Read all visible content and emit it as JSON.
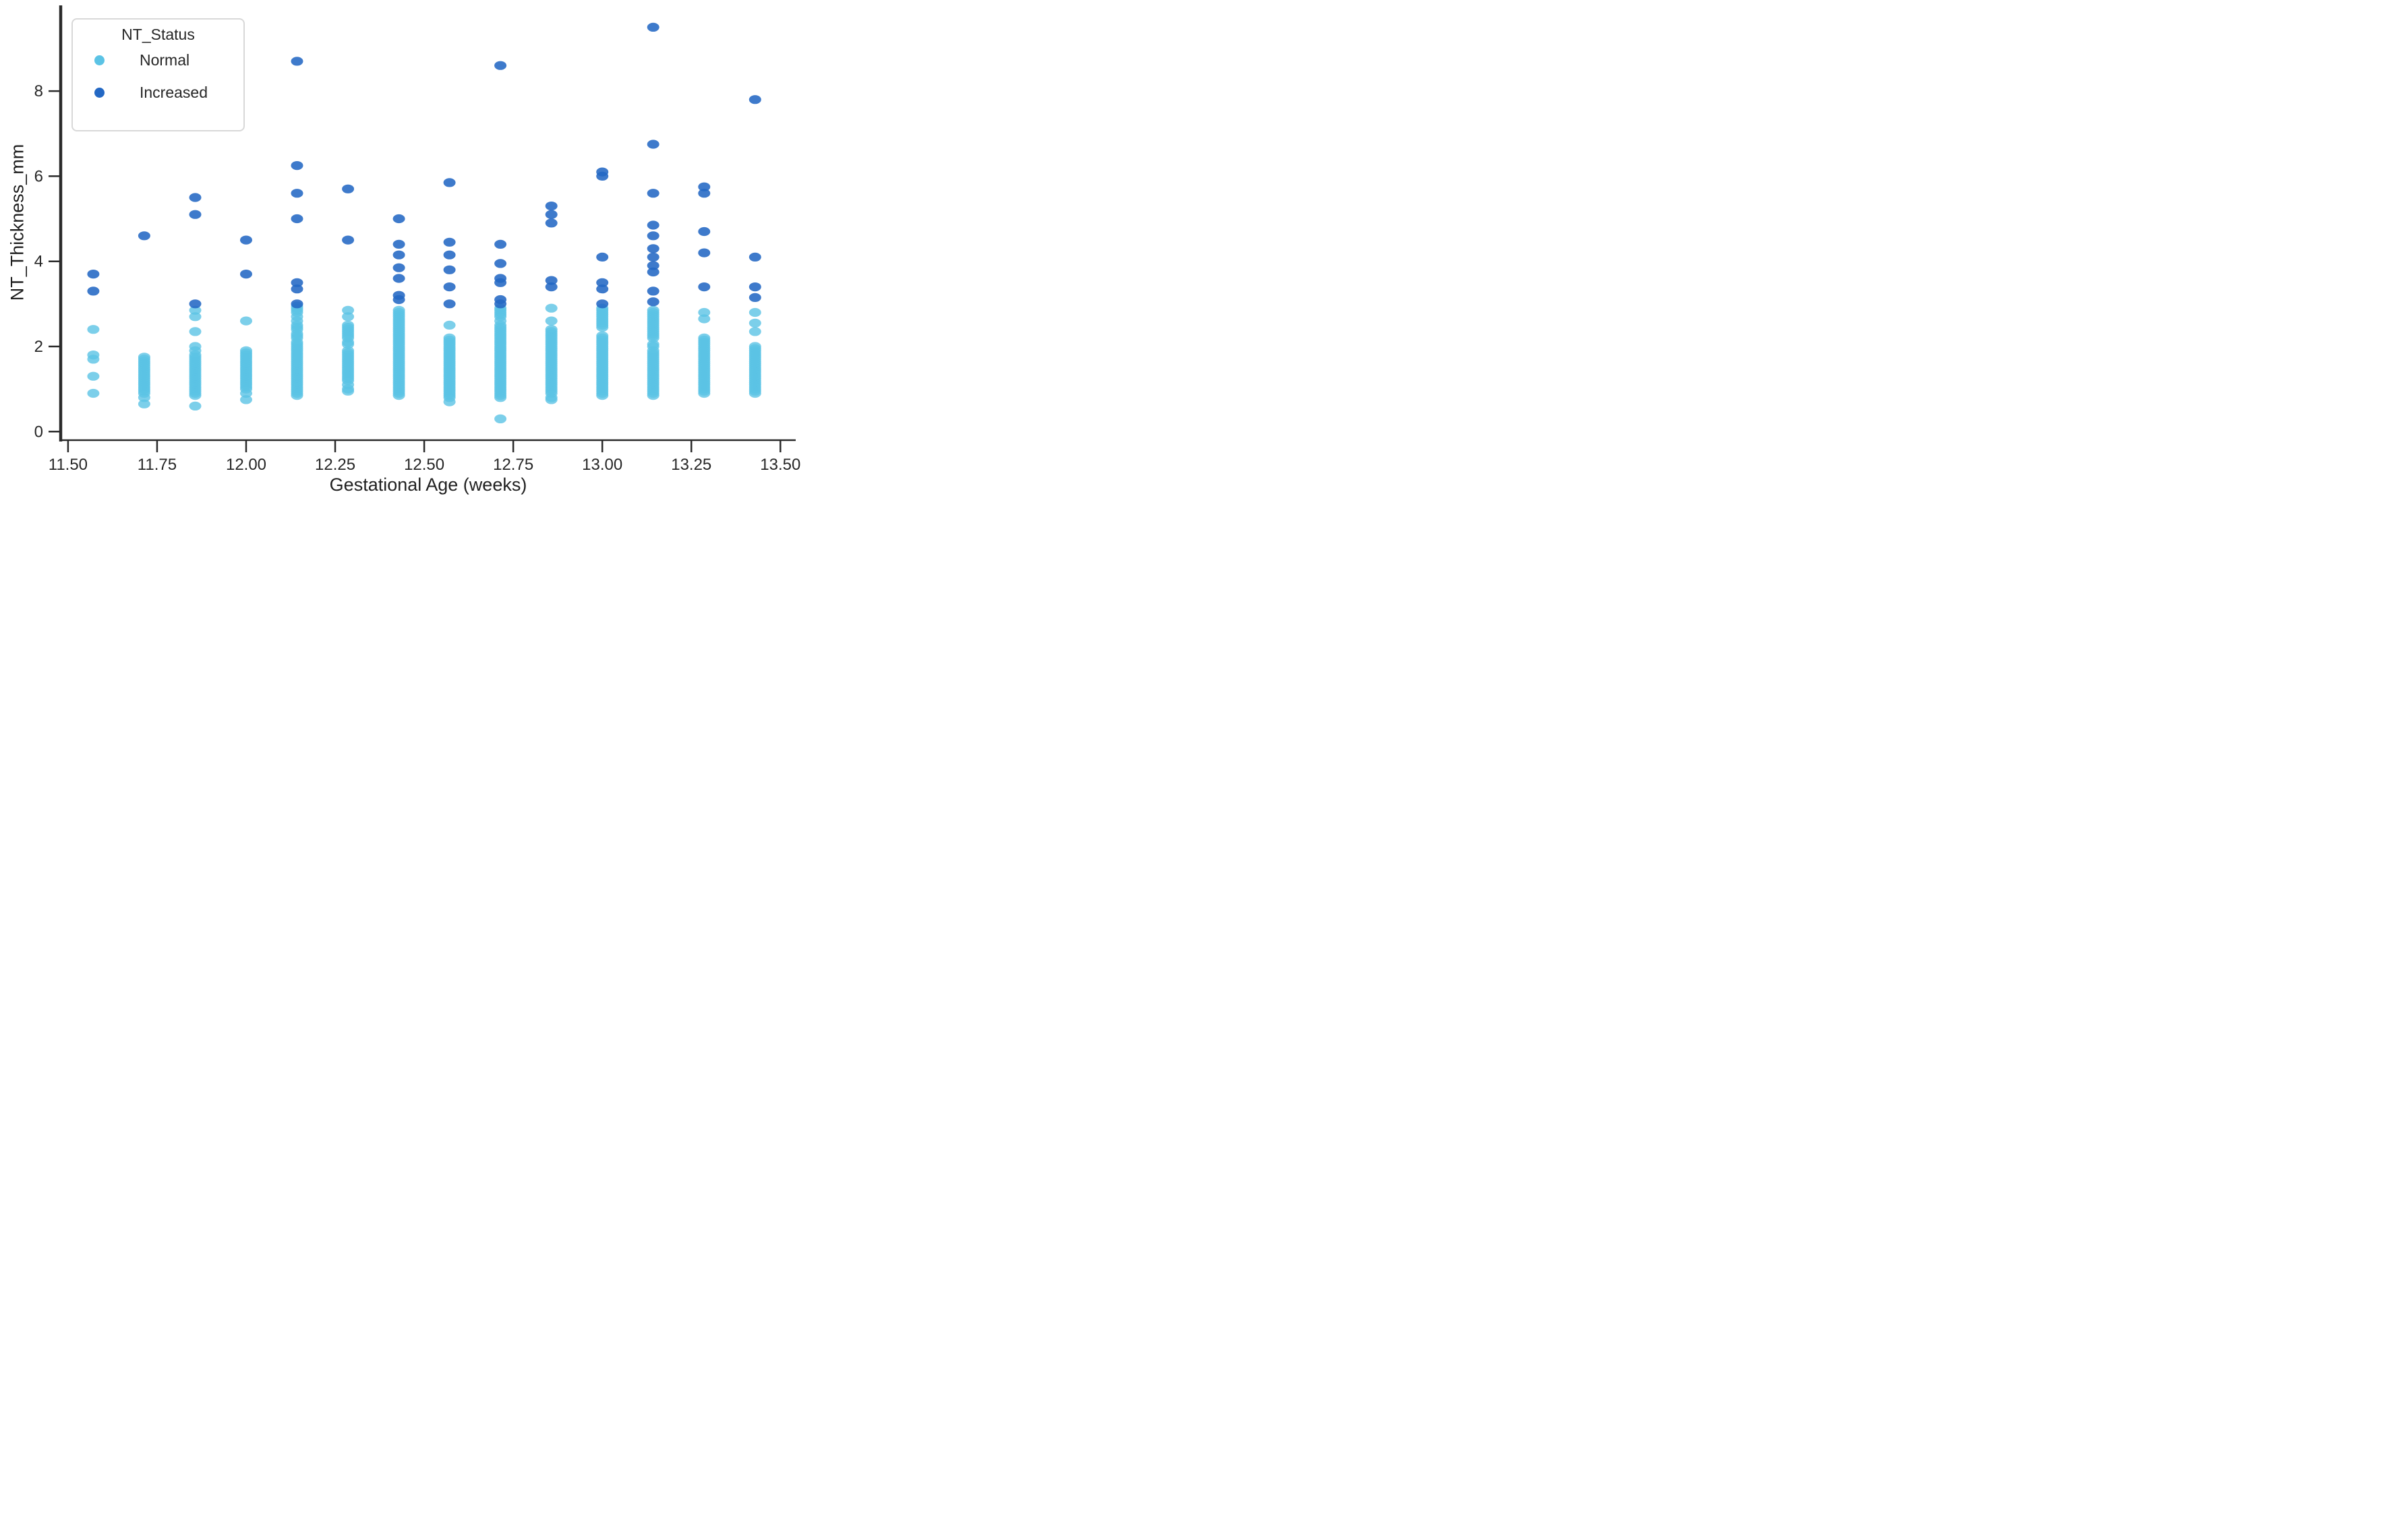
{
  "chart_data": {
    "type": "scatter",
    "title": "",
    "xlabel": "Gestational Age (weeks)",
    "ylabel": "NT_Thickness_mm",
    "xlim": [
      11.48,
      13.54
    ],
    "ylim": [
      -0.2,
      9.95
    ],
    "grid": false,
    "xtick_values": [
      11.5,
      11.75,
      12.0,
      12.25,
      12.5,
      12.75,
      13.0,
      13.25,
      13.5
    ],
    "xtick_labels": [
      "11.50",
      "11.75",
      "12.00",
      "12.25",
      "12.50",
      "12.75",
      "13.00",
      "13.25",
      "13.50"
    ],
    "ytick_values": [
      0,
      2,
      4,
      6,
      8
    ],
    "ytick_labels": [
      "0",
      "2",
      "4",
      "6",
      "8"
    ],
    "legend": {
      "title": "NT_Status",
      "position": "upper left",
      "entries": [
        {
          "label": "Normal",
          "color": "#5bc3e5"
        },
        {
          "label": "Increased",
          "color": "#2368c4"
        }
      ]
    },
    "colors": {
      "background": "#ffffff",
      "spine": "#2a2a2a",
      "text": "#262626"
    },
    "series": [
      {
        "name": "Normal",
        "color": "#5bc3e5",
        "opacity": 0.8,
        "columns": [
          {
            "age": 11.571,
            "values": [
              2.4,
              1.8,
              1.7,
              1.3,
              0.9
            ]
          },
          {
            "age": 11.714,
            "values": [
              1.75,
              1.7,
              1.65,
              1.6,
              1.55,
              1.5,
              1.45,
              1.4,
              1.35,
              1.3,
              1.25,
              1.2,
              1.15,
              1.1,
              1.05,
              1.0,
              0.95,
              0.9,
              0.8,
              0.65
            ]
          },
          {
            "age": 11.857,
            "values": [
              2.85,
              2.7,
              2.35,
              2.0,
              1.9,
              1.8,
              1.75,
              1.7,
              1.65,
              1.6,
              1.55,
              1.5,
              1.45,
              1.4,
              1.35,
              1.3,
              1.25,
              1.2,
              1.15,
              1.1,
              1.05,
              1.0,
              0.95,
              0.9,
              0.85,
              0.6
            ]
          },
          {
            "age": 12.0,
            "values": [
              2.6,
              1.9,
              1.85,
              1.8,
              1.75,
              1.7,
              1.65,
              1.6,
              1.55,
              1.5,
              1.45,
              1.4,
              1.35,
              1.3,
              1.25,
              1.2,
              1.15,
              1.1,
              1.05,
              1.0,
              0.9,
              0.75
            ]
          },
          {
            "age": 12.143,
            "values": [
              2.95,
              2.9,
              2.85,
              2.8,
              2.7,
              2.6,
              2.5,
              2.45,
              2.4,
              2.3,
              2.25,
              2.2,
              2.1,
              2.05,
              2.0,
              1.95,
              1.9,
              1.85,
              1.8,
              1.75,
              1.7,
              1.65,
              1.6,
              1.55,
              1.5,
              1.45,
              1.4,
              1.35,
              1.3,
              1.25,
              1.2,
              1.15,
              1.1,
              1.05,
              1.0,
              0.95,
              0.9,
              0.85
            ]
          },
          {
            "age": 12.286,
            "values": [
              2.85,
              2.7,
              2.5,
              2.45,
              2.4,
              2.35,
              2.3,
              2.25,
              2.2,
              2.1,
              2.05,
              1.9,
              1.85,
              1.8,
              1.75,
              1.7,
              1.65,
              1.6,
              1.55,
              1.5,
              1.45,
              1.4,
              1.35,
              1.3,
              1.25,
              1.2,
              1.1,
              1.0,
              0.95
            ]
          },
          {
            "age": 12.429,
            "values": [
              2.85,
              2.8,
              2.75,
              2.7,
              2.65,
              2.6,
              2.55,
              2.5,
              2.45,
              2.4,
              2.35,
              2.3,
              2.25,
              2.2,
              2.15,
              2.1,
              2.05,
              2.0,
              1.95,
              1.9,
              1.85,
              1.8,
              1.75,
              1.7,
              1.65,
              1.6,
              1.55,
              1.5,
              1.45,
              1.4,
              1.35,
              1.3,
              1.25,
              1.2,
              1.15,
              1.1,
              1.05,
              1.0,
              0.95,
              0.9,
              0.85
            ]
          },
          {
            "age": 12.571,
            "values": [
              2.5,
              2.2,
              2.15,
              2.1,
              2.05,
              2.0,
              1.95,
              1.9,
              1.85,
              1.8,
              1.75,
              1.7,
              1.65,
              1.6,
              1.55,
              1.5,
              1.45,
              1.4,
              1.35,
              1.3,
              1.25,
              1.2,
              1.15,
              1.1,
              1.05,
              1.0,
              0.95,
              0.9,
              0.85,
              0.8,
              0.7
            ]
          },
          {
            "age": 12.714,
            "values": [
              2.9,
              2.85,
              2.8,
              2.75,
              2.7,
              2.6,
              2.5,
              2.45,
              2.4,
              2.35,
              2.3,
              2.25,
              2.2,
              2.15,
              2.1,
              2.05,
              2.0,
              1.95,
              1.9,
              1.85,
              1.8,
              1.75,
              1.7,
              1.65,
              1.6,
              1.55,
              1.5,
              1.45,
              1.4,
              1.35,
              1.3,
              1.25,
              1.2,
              1.15,
              1.1,
              1.05,
              1.0,
              0.95,
              0.9,
              0.85,
              0.8,
              0.3
            ]
          },
          {
            "age": 12.857,
            "values": [
              2.9,
              2.6,
              2.4,
              2.35,
              2.3,
              2.25,
              2.2,
              2.15,
              2.1,
              2.05,
              2.0,
              1.95,
              1.9,
              1.85,
              1.8,
              1.75,
              1.7,
              1.65,
              1.6,
              1.55,
              1.5,
              1.45,
              1.4,
              1.35,
              1.3,
              1.25,
              1.2,
              1.15,
              1.1,
              1.05,
              1.0,
              0.95,
              0.9,
              0.8,
              0.75
            ]
          },
          {
            "age": 13.0,
            "values": [
              2.9,
              2.85,
              2.8,
              2.75,
              2.7,
              2.65,
              2.6,
              2.55,
              2.5,
              2.45,
              2.25,
              2.2,
              2.15,
              2.1,
              2.05,
              2.0,
              1.95,
              1.9,
              1.85,
              1.8,
              1.75,
              1.7,
              1.65,
              1.6,
              1.55,
              1.5,
              1.45,
              1.4,
              1.35,
              1.3,
              1.25,
              1.2,
              1.15,
              1.1,
              1.05,
              1.0,
              0.95,
              0.9,
              0.85
            ]
          },
          {
            "age": 13.143,
            "values": [
              2.85,
              2.8,
              2.75,
              2.7,
              2.65,
              2.6,
              2.55,
              2.5,
              2.45,
              2.4,
              2.35,
              2.3,
              2.25,
              2.2,
              2.05,
              2.0,
              1.9,
              1.85,
              1.8,
              1.75,
              1.7,
              1.65,
              1.6,
              1.55,
              1.5,
              1.45,
              1.4,
              1.35,
              1.3,
              1.25,
              1.2,
              1.15,
              1.1,
              1.05,
              1.0,
              0.95,
              0.9,
              0.85
            ]
          },
          {
            "age": 13.286,
            "values": [
              2.8,
              2.65,
              2.2,
              2.15,
              2.1,
              2.05,
              2.0,
              1.95,
              1.9,
              1.85,
              1.8,
              1.75,
              1.7,
              1.65,
              1.6,
              1.55,
              1.5,
              1.45,
              1.4,
              1.35,
              1.3,
              1.25,
              1.2,
              1.15,
              1.1,
              1.05,
              1.0,
              0.95,
              0.9
            ]
          },
          {
            "age": 13.429,
            "values": [
              2.8,
              2.55,
              2.35,
              2.0,
              1.95,
              1.9,
              1.85,
              1.8,
              1.75,
              1.7,
              1.65,
              1.6,
              1.55,
              1.5,
              1.45,
              1.4,
              1.35,
              1.3,
              1.25,
              1.2,
              1.15,
              1.1,
              1.05,
              1.0,
              0.95,
              0.9
            ]
          }
        ]
      },
      {
        "name": "Increased",
        "color": "#2368c4",
        "opacity": 0.88,
        "columns": [
          {
            "age": 11.571,
            "values": [
              3.7,
              3.3
            ]
          },
          {
            "age": 11.714,
            "values": [
              4.6
            ]
          },
          {
            "age": 11.857,
            "values": [
              5.5,
              5.1,
              3.0
            ]
          },
          {
            "age": 12.0,
            "values": [
              4.5,
              3.7
            ]
          },
          {
            "age": 12.143,
            "values": [
              8.7,
              6.25,
              5.6,
              5.0,
              3.5,
              3.35,
              3.0
            ]
          },
          {
            "age": 12.286,
            "values": [
              5.7,
              4.5
            ]
          },
          {
            "age": 12.429,
            "values": [
              5.0,
              4.4,
              4.15,
              3.85,
              3.6,
              3.2,
              3.1
            ]
          },
          {
            "age": 12.571,
            "values": [
              5.85,
              4.45,
              4.15,
              3.8,
              3.4,
              3.0
            ]
          },
          {
            "age": 12.714,
            "values": [
              8.6,
              4.4,
              3.95,
              3.6,
              3.5,
              3.1,
              3.0
            ]
          },
          {
            "age": 12.857,
            "values": [
              5.3,
              5.1,
              4.9,
              3.55,
              3.4
            ]
          },
          {
            "age": 13.0,
            "values": [
              6.1,
              6.0,
              4.1,
              3.5,
              3.35,
              3.0
            ]
          },
          {
            "age": 13.143,
            "values": [
              9.5,
              6.75,
              5.6,
              4.85,
              4.6,
              4.3,
              4.1,
              3.9,
              3.75,
              3.3,
              3.05
            ]
          },
          {
            "age": 13.286,
            "values": [
              5.75,
              5.6,
              4.7,
              4.2,
              3.4
            ]
          },
          {
            "age": 13.429,
            "values": [
              7.8,
              4.1,
              3.4,
              3.15
            ]
          }
        ]
      }
    ]
  }
}
